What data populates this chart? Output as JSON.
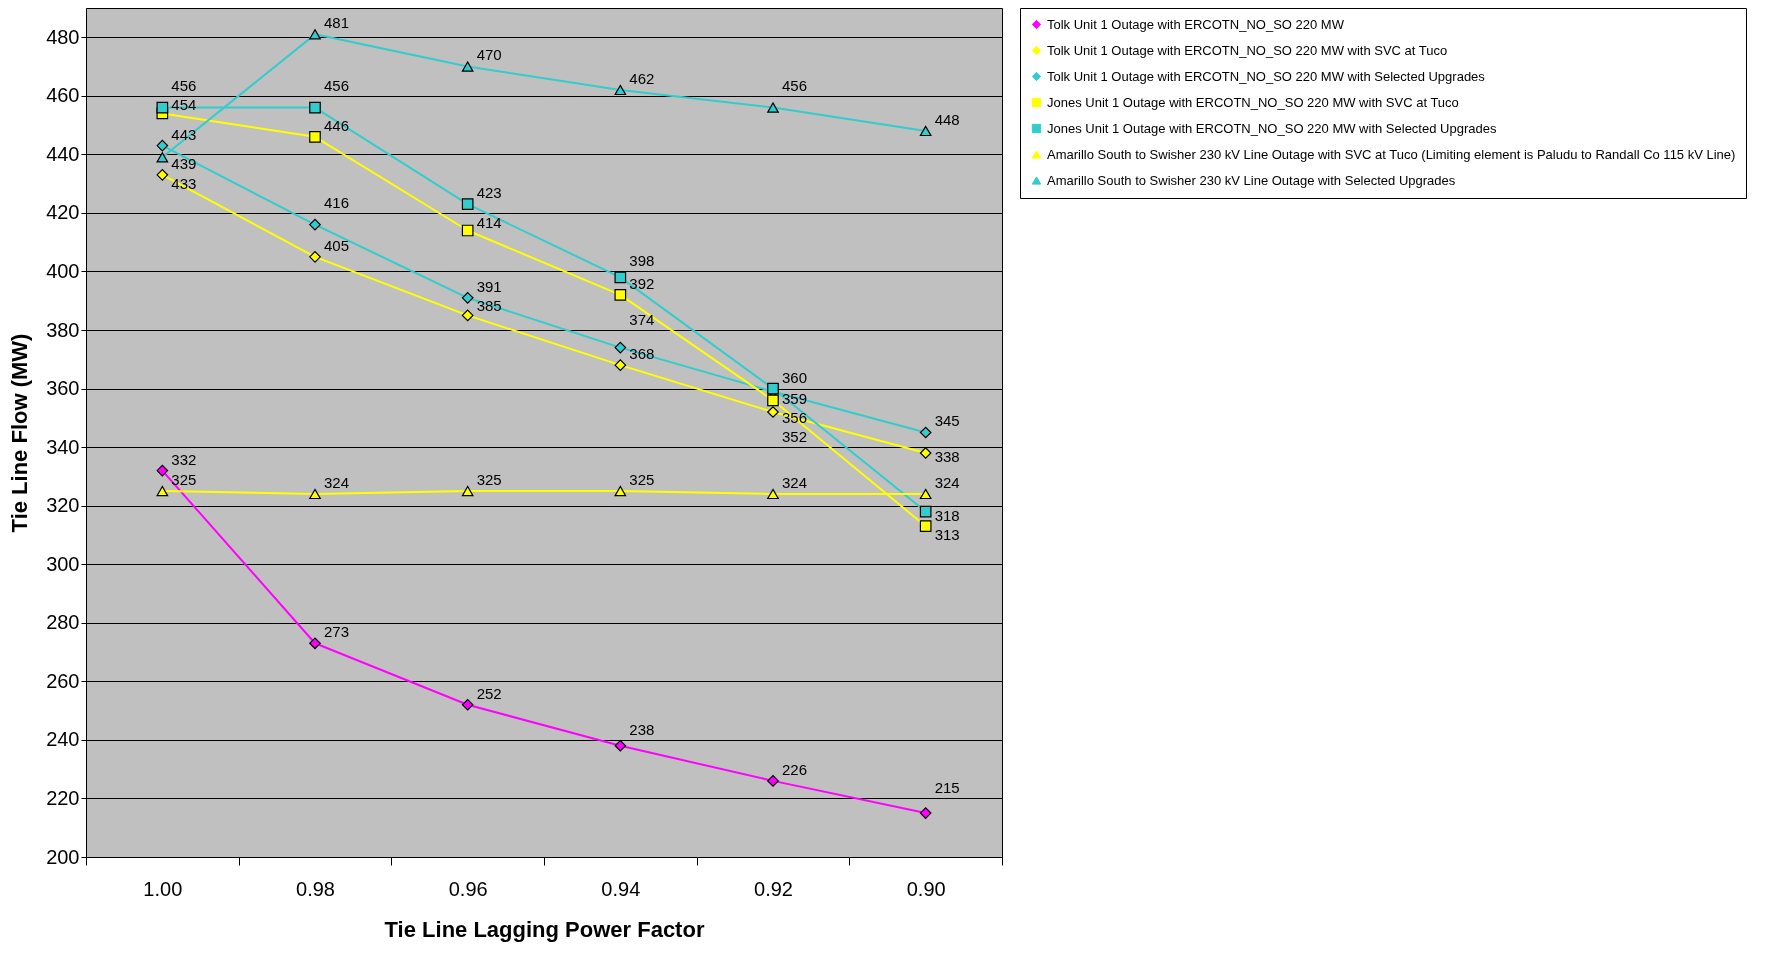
{
  "chart_data": {
    "type": "line",
    "xlabel": "Tie Line Lagging Power Factor",
    "ylabel": "Tie Line Flow (MW)",
    "categories": [
      "1.00",
      "0.98",
      "0.96",
      "0.94",
      "0.92",
      "0.90"
    ],
    "ylim": [
      200,
      490
    ],
    "yticks": [
      200,
      220,
      240,
      260,
      280,
      300,
      320,
      340,
      360,
      380,
      400,
      420,
      440,
      460,
      480
    ],
    "grid": "y",
    "legend": "right",
    "data_labels": true,
    "series": [
      {
        "name": "Tolk Unit 1 Outage with ERCOTN_NO_SO 220 MW",
        "color": "#ff00ff",
        "marker": "diamond",
        "values": [
          332,
          273,
          252,
          238,
          226,
          215
        ]
      },
      {
        "name": "Tolk Unit 1 Outage with ERCOTN_NO_SO 220 MW with SVC at Tuco",
        "color": "#ffff00",
        "marker": "diamond",
        "values": [
          433,
          405,
          385,
          368,
          352,
          338
        ]
      },
      {
        "name": "Tolk Unit 1 Outage with ERCOTN_NO_SO 220 MW with Selected Upgrades",
        "color": "#33cccc",
        "marker": "diamond",
        "values": [
          443,
          416,
          391,
          374,
          359,
          345
        ]
      },
      {
        "name": "Jones Unit 1 Outage with ERCOTN_NO_SO 220 MW with SVC at Tuco",
        "color": "#ffff00",
        "marker": "square",
        "values": [
          454,
          446,
          414,
          392,
          356,
          313
        ]
      },
      {
        "name": "Jones Unit 1 Outage with ERCOTN_NO_SO 220 MW with Selected Upgrades",
        "color": "#33cccc",
        "marker": "square",
        "values": [
          456,
          456,
          423,
          398,
          360,
          318
        ]
      },
      {
        "name": "Amarillo South to Swisher 230 kV Line Outage with SVC at Tuco (Limiting element is Paludu to Randall Co 115 kV Line)",
        "color": "#ffff00",
        "marker": "triangle",
        "values": [
          325,
          324,
          325,
          325,
          324,
          324
        ]
      },
      {
        "name": "Amarillo South to Swisher 230 kV Line Outage with Selected Upgrades",
        "color": "#33cccc",
        "marker": "triangle",
        "values": [
          439,
          481,
          470,
          462,
          456,
          448
        ]
      }
    ]
  }
}
